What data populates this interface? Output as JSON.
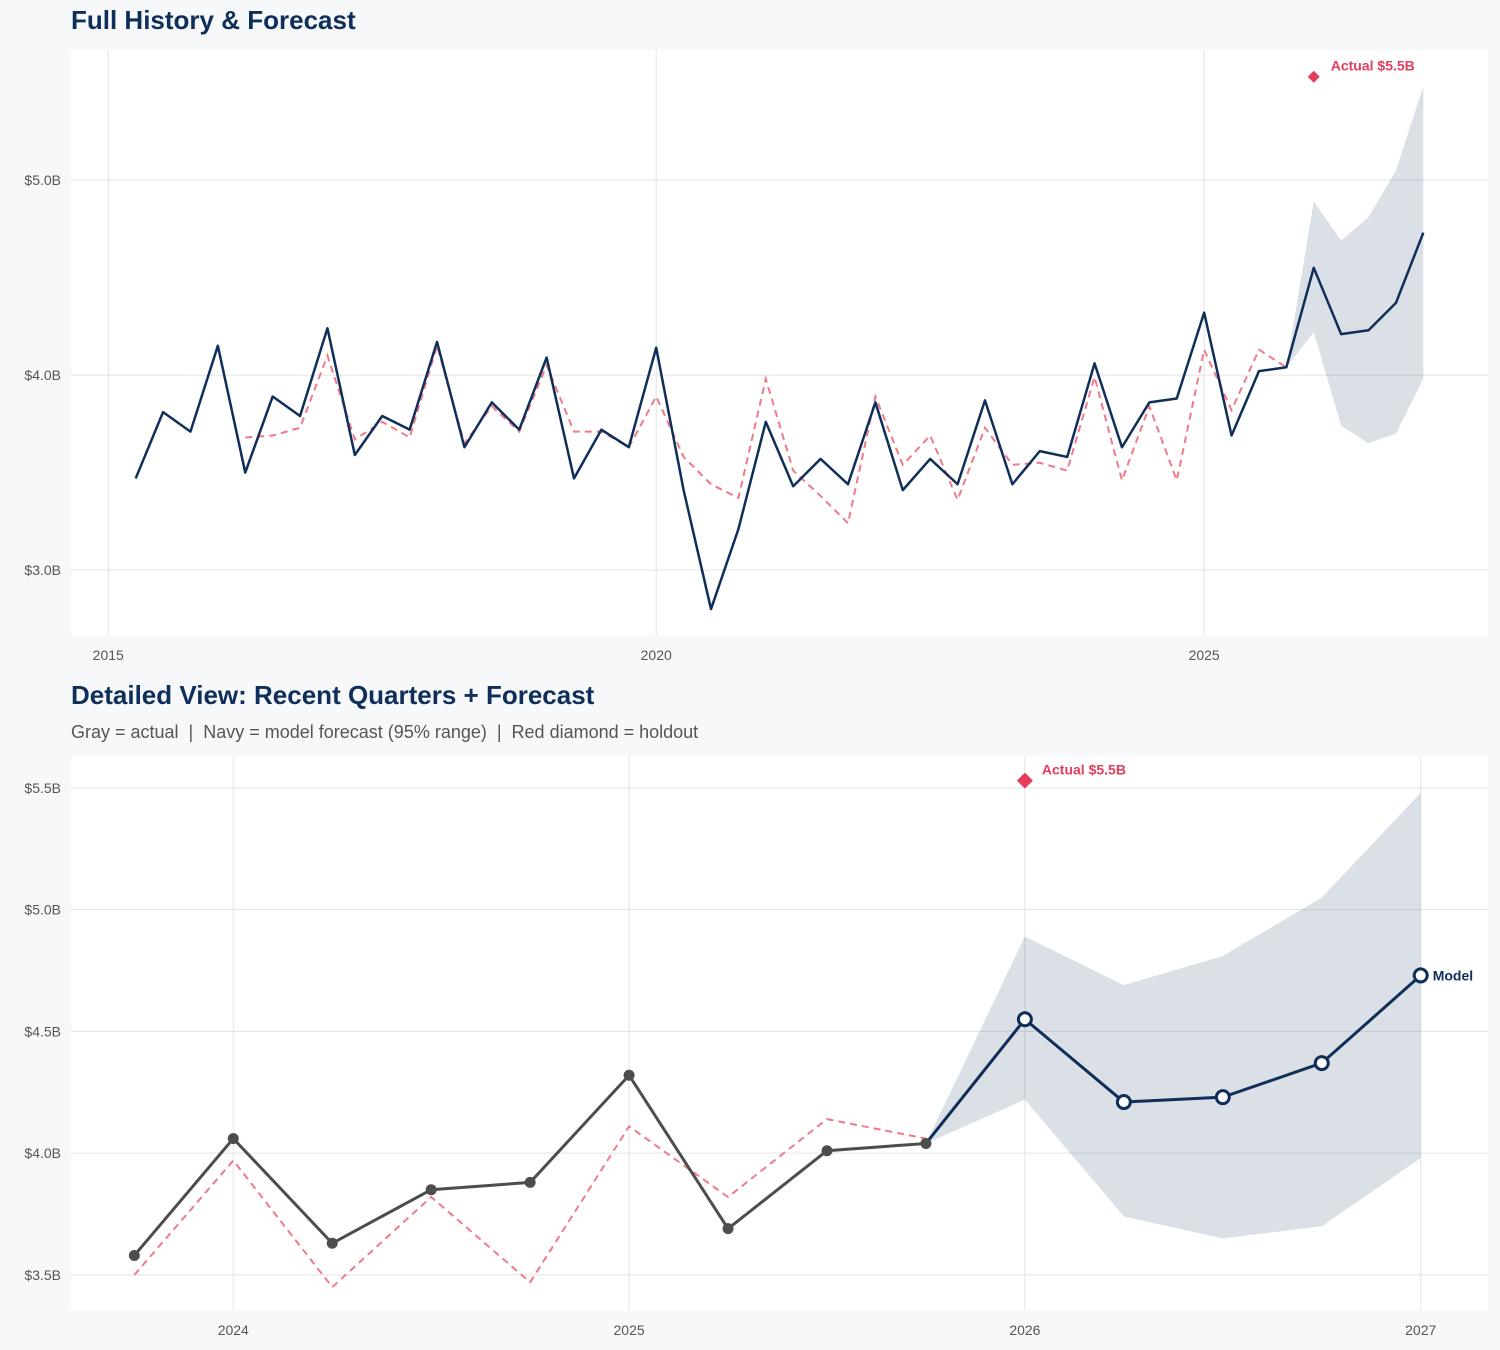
{
  "colors": {
    "navy": "#0f2f5a",
    "red": "#e43d5c",
    "fitted": "#f07a8a",
    "gray": "#4d4d4d",
    "band": "#0f2f5a",
    "grid": "#e1e3e6"
  },
  "chart_data": [
    {
      "type": "line",
      "title": "Full History & Forecast",
      "xlim": [
        2014.66,
        2027.59
      ],
      "ylim": [
        2.667,
        5.667
      ],
      "xticks": [
        2015,
        2020,
        2025
      ],
      "xtick_labels": [
        "2015",
        "2020",
        "2025"
      ],
      "yticks": [
        3.0,
        4.0,
        5.0
      ],
      "ytick_labels": [
        "$3.0B",
        "$4.0B",
        "$5.0B"
      ],
      "grid": true,
      "actual": {
        "x_start": 2015.25,
        "step": 0.25,
        "values": [
          3.47,
          3.81,
          3.71,
          4.15,
          3.5,
          3.89,
          3.79,
          4.24,
          3.59,
          3.79,
          3.72,
          4.17,
          3.63,
          3.86,
          3.72,
          4.09,
          3.47,
          3.72,
          3.63,
          4.14,
          3.41,
          2.8,
          3.21,
          3.76,
          3.43,
          3.57,
          3.44,
          3.86,
          3.41,
          3.57,
          3.44,
          3.87,
          3.44,
          3.61,
          3.58,
          4.06,
          3.63,
          3.86,
          3.88,
          4.32,
          3.69,
          4.02,
          4.04
        ]
      },
      "fitted": {
        "x_start": 2016.25,
        "step": 0.25,
        "values": [
          3.68,
          3.69,
          3.73,
          4.1,
          3.67,
          3.76,
          3.68,
          4.15,
          3.65,
          3.84,
          3.71,
          4.05,
          3.71,
          3.71,
          3.63,
          3.89,
          3.58,
          3.44,
          3.37,
          3.98,
          3.51,
          3.38,
          3.24,
          3.89,
          3.54,
          3.69,
          3.36,
          3.73,
          3.54,
          3.55,
          3.51,
          3.99,
          3.46,
          3.84,
          3.46,
          4.13,
          3.82,
          4.13,
          4.04
        ]
      },
      "forecast": {
        "x": [
          2025.75,
          2026,
          2026.25,
          2026.5,
          2026.75,
          2027
        ],
        "values": [
          4.04,
          4.55,
          4.21,
          4.23,
          4.37,
          4.73
        ],
        "lower": [
          4.04,
          4.22,
          3.74,
          3.65,
          3.7,
          3.98
        ],
        "upper": [
          4.04,
          4.89,
          4.69,
          4.81,
          5.05,
          5.48
        ]
      },
      "holdout": {
        "x": 2026,
        "value": 5.53,
        "label": "Actual $5.5B"
      }
    },
    {
      "type": "line",
      "title": "Detailed View: Recent Quarters + Forecast",
      "subtitle": "Gray = actual  |  Navy = model forecast (95% range)  |  Red diamond = holdout",
      "xlim": [
        2023.59,
        2027.17
      ],
      "ylim": [
        3.356,
        5.627
      ],
      "xticks": [
        2024,
        2025,
        2026,
        2027
      ],
      "xtick_labels": [
        "2024",
        "2025",
        "2026",
        "2027"
      ],
      "yticks": [
        3.5,
        4.0,
        4.5,
        5.0,
        5.5
      ],
      "ytick_labels": [
        "$3.5B",
        "$4.0B",
        "$4.5B",
        "$5.0B",
        "$5.5B"
      ],
      "grid": true,
      "actual": {
        "x_start": 2023.75,
        "step": 0.25,
        "values": [
          3.58,
          4.06,
          3.63,
          3.85,
          3.88,
          4.32,
          3.69,
          4.01,
          4.04
        ]
      },
      "fitted": {
        "x_start": 2023.75,
        "step": 0.25,
        "values": [
          3.5,
          3.97,
          3.45,
          3.82,
          3.47,
          4.11,
          3.82,
          4.14,
          4.06
        ]
      },
      "forecast": {
        "x": [
          2025.75,
          2026,
          2026.25,
          2026.5,
          2026.75,
          2027
        ],
        "values": [
          4.04,
          4.55,
          4.21,
          4.23,
          4.37,
          4.73
        ],
        "lower": [
          4.04,
          4.22,
          3.74,
          3.65,
          3.7,
          3.98
        ],
        "upper": [
          4.04,
          4.89,
          4.69,
          4.81,
          5.05,
          5.48
        ],
        "end_label": "Model"
      },
      "holdout": {
        "x": 2026,
        "value": 5.53,
        "label": "Actual $5.5B"
      }
    }
  ]
}
